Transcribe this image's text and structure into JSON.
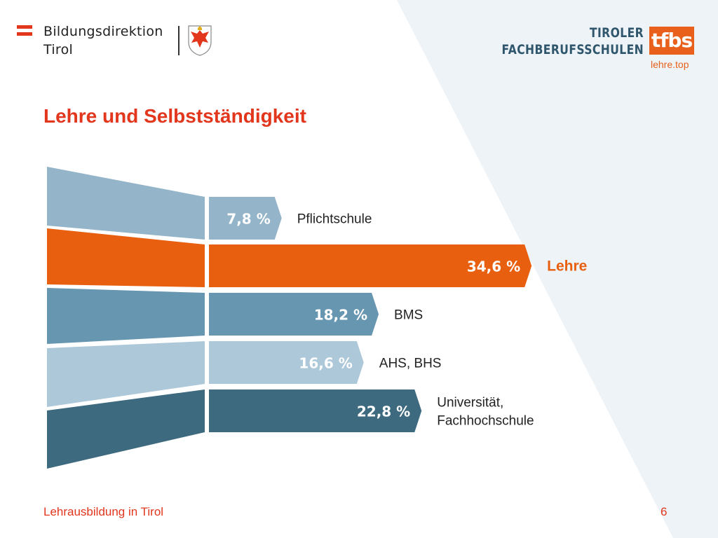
{
  "header": {
    "org_line1": "Bildungsdirektion",
    "org_line2": "Tirol",
    "brand_line1": "TIROLER",
    "brand_line2": "FACHBERUFSSCHULEN",
    "brand_badge": "tfbs",
    "brand_url": "lehre.top"
  },
  "title": "Lehre und Selbstständigkeit",
  "footer": {
    "left": "Lehrausbildung in Tirol",
    "page_number": "6"
  },
  "colors": {
    "accent_red": "#e2361d",
    "accent_orange": "#e8600f",
    "flag_red": "#e2361d",
    "background_panel": "#edf3f7"
  },
  "chart_data": {
    "type": "bar",
    "orientation": "horizontal",
    "unit": "%",
    "categories": [
      "Pflichtschule",
      "Lehre",
      "BMS",
      "AHS, BHS",
      "Universität, Fachhochschule"
    ],
    "label_lines": [
      [
        "Pflichtschule"
      ],
      [
        "Lehre"
      ],
      [
        "BMS"
      ],
      [
        "AHS, BHS"
      ],
      [
        "Universität,",
        "Fachhochschule"
      ]
    ],
    "values": [
      7.8,
      34.6,
      18.2,
      16.6,
      22.8
    ],
    "value_labels": [
      "7,8 %",
      "34,6 %",
      "18,2 %",
      "16,6 %",
      "22,8 %"
    ],
    "colors": [
      "#94b5c9",
      "#e8600f",
      "#6796b0",
      "#adc8d9",
      "#3d6a7e"
    ],
    "highlight": "Lehre",
    "title": "",
    "xlabel": "",
    "ylabel": "",
    "legend": "none",
    "grid": false
  }
}
